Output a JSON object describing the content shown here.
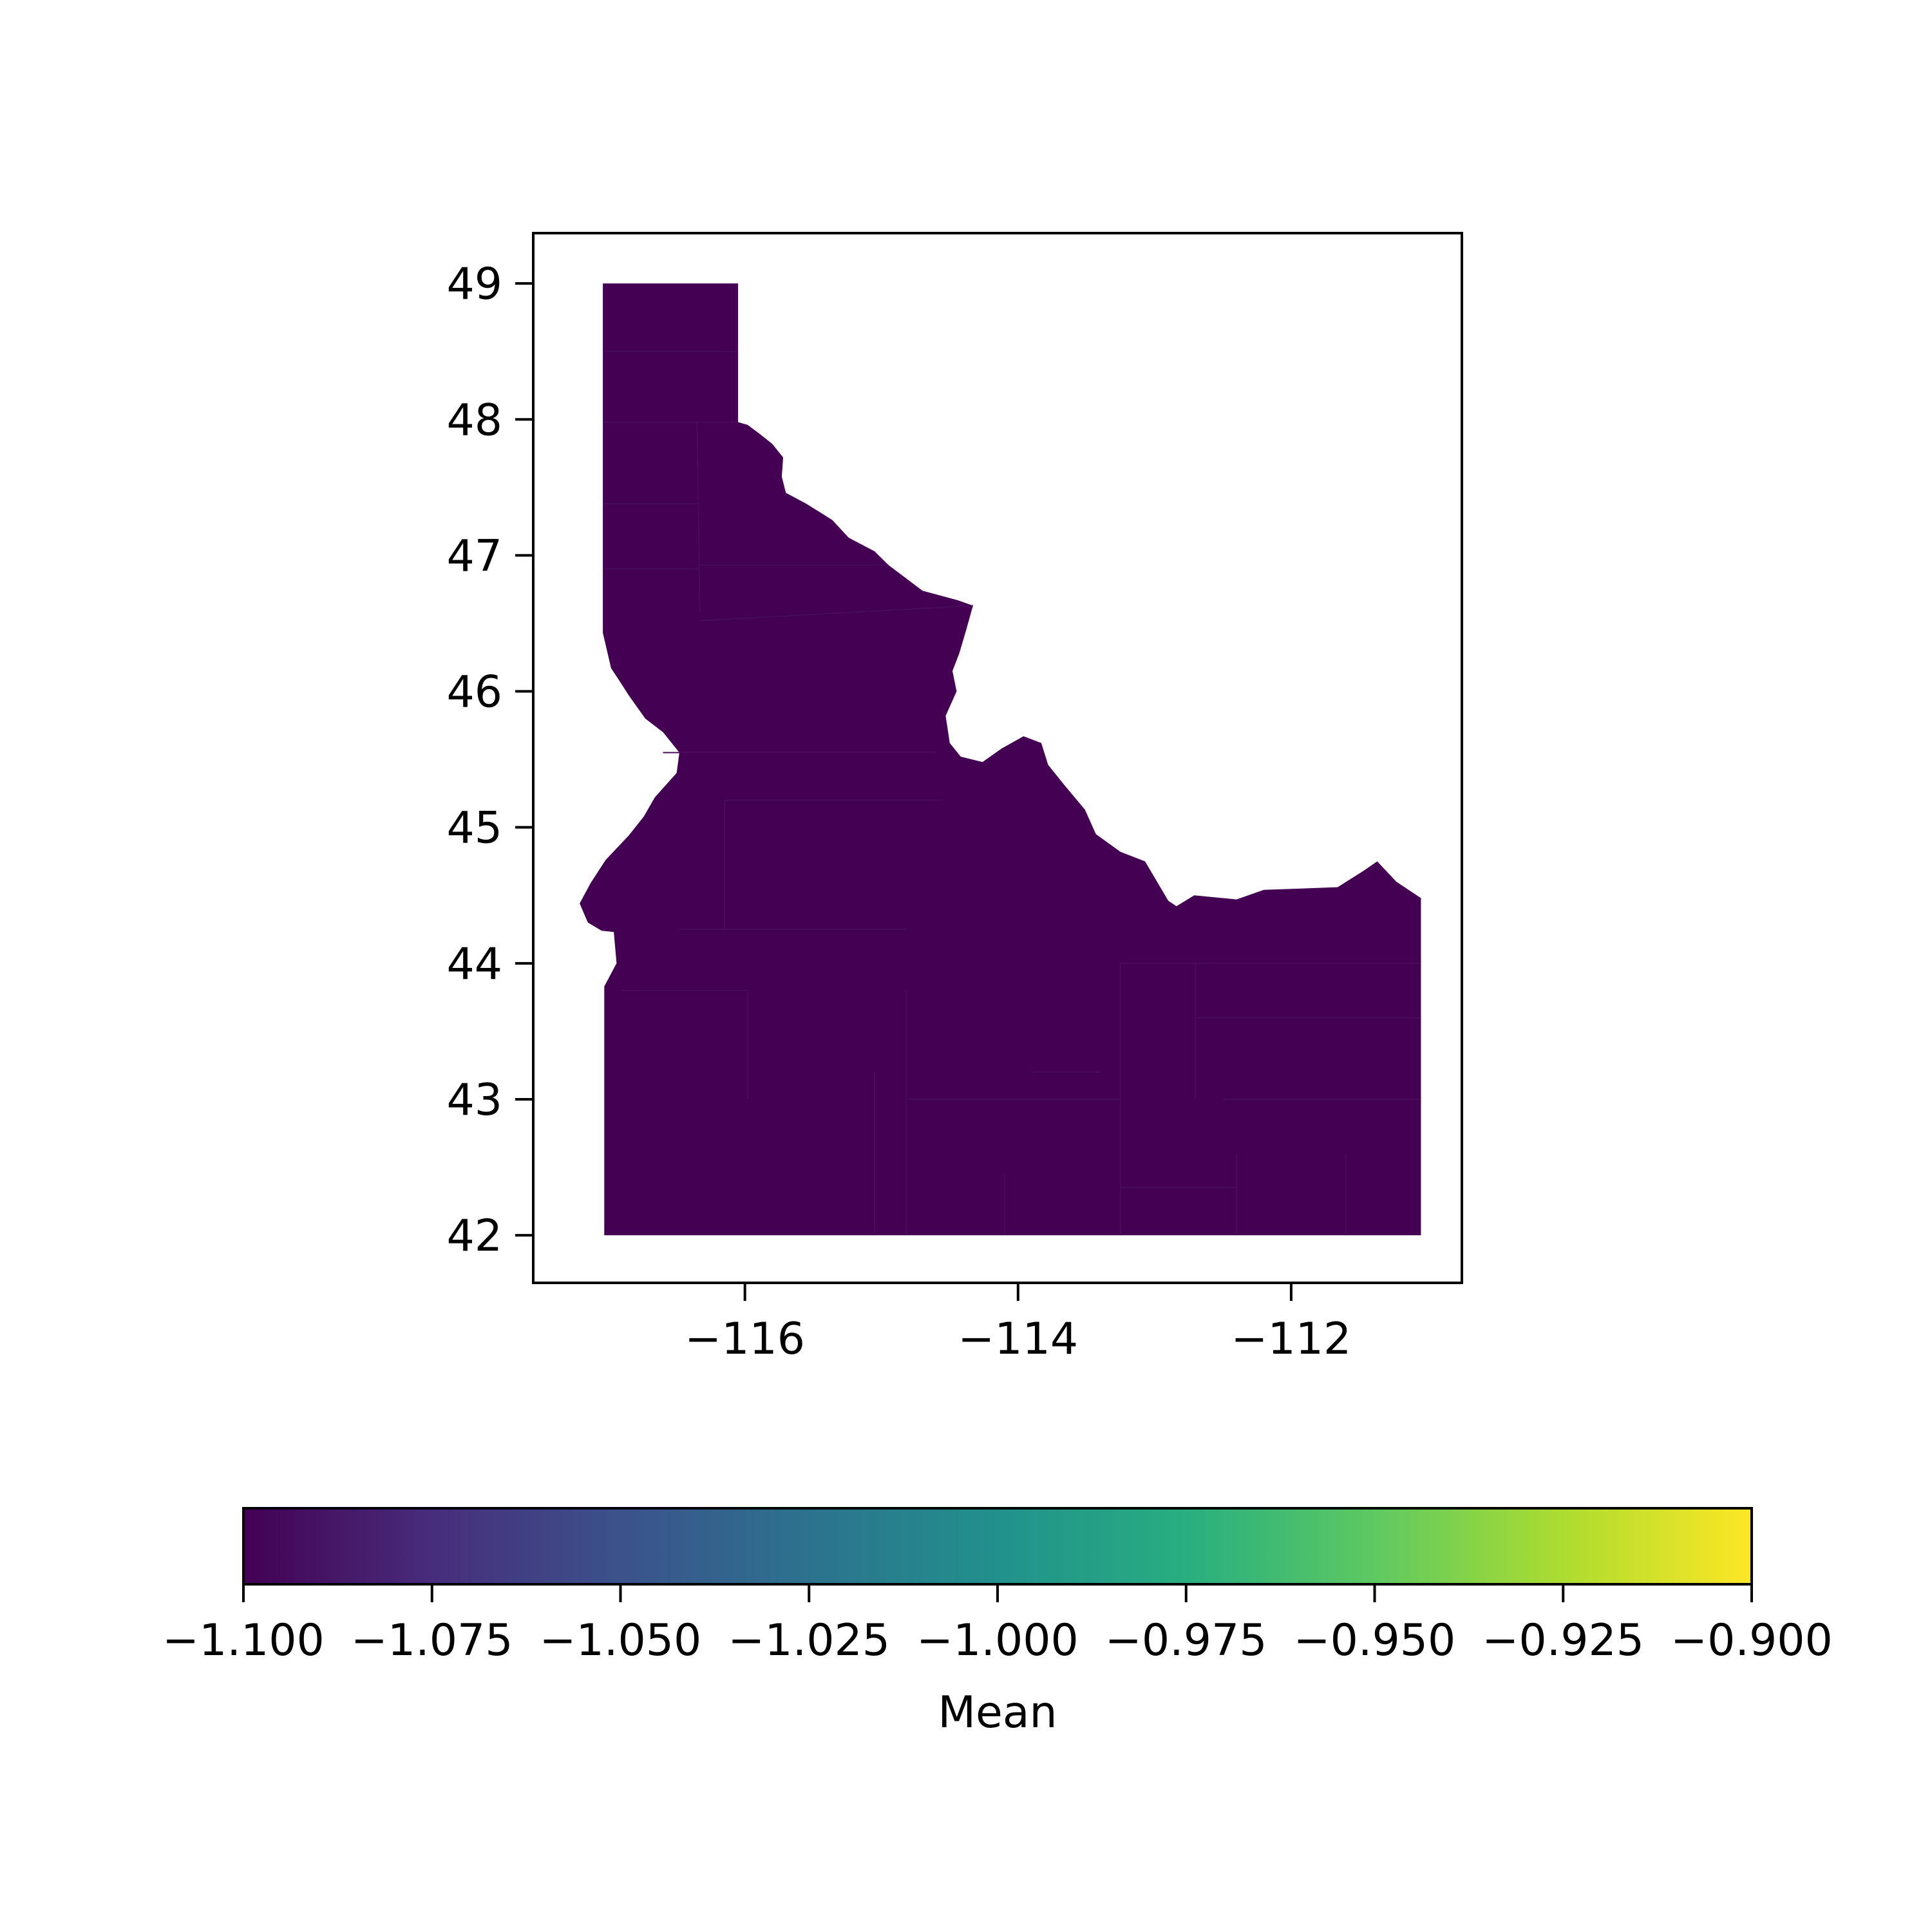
{
  "chart_data": {
    "type": "choropleth",
    "region": "Idaho",
    "x_axis": {
      "ticks": [
        -116,
        -114,
        -112
      ],
      "tick_labels": [
        "−116",
        "−114",
        "−112"
      ],
      "range": [
        -117.55,
        -110.75
      ]
    },
    "y_axis": {
      "ticks": [
        42,
        43,
        44,
        45,
        46,
        47,
        48,
        49
      ],
      "tick_labels": [
        "42",
        "43",
        "44",
        "45",
        "46",
        "47",
        "48",
        "49"
      ],
      "range": [
        41.65,
        49.37
      ]
    },
    "fill_value": -1.1,
    "fill_color": "#440154",
    "colorbar": {
      "label": "Mean",
      "colormap": "viridis",
      "range": [
        -1.1,
        -0.9
      ],
      "ticks": [
        -1.1,
        -1.075,
        -1.05,
        -1.025,
        -1.0,
        -0.975,
        -0.95,
        -0.925,
        -0.9
      ],
      "tick_labels": [
        "−1.100",
        "−1.075",
        "−1.050",
        "−1.025",
        "−1.000",
        "−0.975",
        "−0.950",
        "−0.925",
        "−0.900"
      ],
      "colors": [
        "#440154",
        "#472d7b",
        "#3b528b",
        "#2c728e",
        "#21918c",
        "#28ae80",
        "#5ec962",
        "#addc30",
        "#fde725"
      ]
    }
  }
}
